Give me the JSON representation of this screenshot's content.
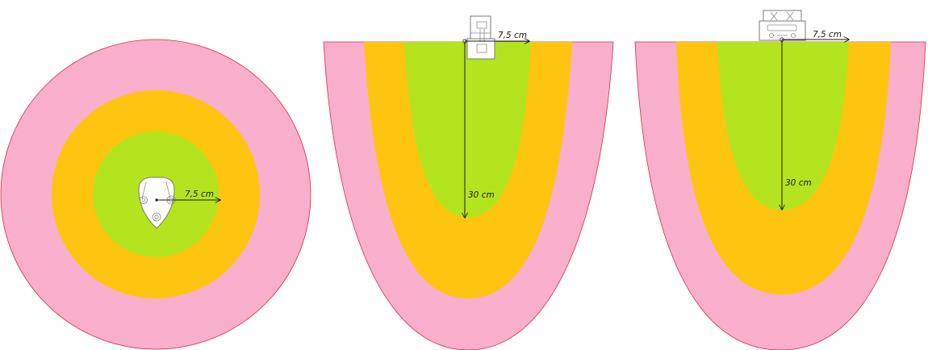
{
  "colors": {
    "outer_zone": "#F9AECB",
    "middle_zone": "#FDC50F",
    "inner_zone": "#B4E41D",
    "zone_outline": "#D0304A",
    "line": "#1A1A1A"
  },
  "views": [
    {
      "name": "top-view",
      "radius_label": "7,5 cm"
    },
    {
      "name": "side-view",
      "radius_label": "7,5 cm",
      "depth_label": "30 cm"
    },
    {
      "name": "front-view",
      "radius_label": "7,5 cm",
      "depth_label": "30 cm"
    }
  ]
}
